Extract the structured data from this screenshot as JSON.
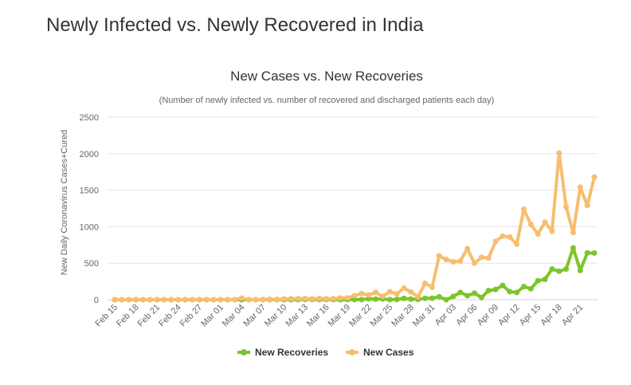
{
  "page": {
    "heading": "Newly Infected vs. Newly Recovered in India"
  },
  "chart_data": {
    "type": "line",
    "title": "New Cases vs. New Recoveries",
    "subtitle": "(Number of newly infected vs. number of recovered and discharged patients each day)",
    "xlabel": "",
    "ylabel": "New Daily Coronavirus Cases+Cured",
    "ylim": [
      0,
      2500
    ],
    "yticks": [
      0,
      500,
      1000,
      1500,
      2000,
      2500
    ],
    "grid": true,
    "legend_position": "bottom-center",
    "x": [
      "Feb 15",
      "Feb 16",
      "Feb 17",
      "Feb 18",
      "Feb 19",
      "Feb 20",
      "Feb 21",
      "Feb 22",
      "Feb 23",
      "Feb 24",
      "Feb 25",
      "Feb 26",
      "Feb 27",
      "Feb 28",
      "Feb 29",
      "Mar 01",
      "Mar 02",
      "Mar 03",
      "Mar 04",
      "Mar 05",
      "Mar 06",
      "Mar 07",
      "Mar 08",
      "Mar 09",
      "Mar 10",
      "Mar 11",
      "Mar 12",
      "Mar 13",
      "Mar 14",
      "Mar 15",
      "Mar 16",
      "Mar 17",
      "Mar 18",
      "Mar 19",
      "Mar 20",
      "Mar 21",
      "Mar 22",
      "Mar 23",
      "Mar 24",
      "Mar 25",
      "Mar 26",
      "Mar 27",
      "Mar 28",
      "Mar 29",
      "Mar 30",
      "Mar 31",
      "Apr 01",
      "Apr 02",
      "Apr 03",
      "Apr 04",
      "Apr 05",
      "Apr 06",
      "Apr 07",
      "Apr 08",
      "Apr 09",
      "Apr 10",
      "Apr 11",
      "Apr 12",
      "Apr 13",
      "Apr 14",
      "Apr 15",
      "Apr 16",
      "Apr 17",
      "Apr 18",
      "Apr 19",
      "Apr 20",
      "Apr 21",
      "Apr 22",
      "Apr 23"
    ],
    "x_tick_labels": [
      "Feb 15",
      "Feb 18",
      "Feb 21",
      "Feb 24",
      "Feb 27",
      "Mar 01",
      "Mar 04",
      "Mar 07",
      "Mar 10",
      "Mar 13",
      "Mar 16",
      "Mar 19",
      "Mar 22",
      "Mar 25",
      "Mar 28",
      "Mar 31",
      "Apr 03",
      "Apr 06",
      "Apr 09",
      "Apr 12",
      "Apr 15",
      "Apr 18",
      "Apr 21"
    ],
    "series": [
      {
        "name": "New Recoveries",
        "color": "#7cc52b",
        "values": [
          0,
          0,
          0,
          0,
          0,
          0,
          0,
          0,
          0,
          0,
          0,
          0,
          0,
          0,
          0,
          0,
          0,
          0,
          0,
          0,
          0,
          0,
          0,
          0,
          0,
          0,
          1,
          4,
          4,
          2,
          3,
          2,
          0,
          2,
          3,
          2,
          12,
          8,
          11,
          1,
          4,
          18,
          8,
          5,
          19,
          20,
          40,
          0,
          45,
          100,
          55,
          90,
          30,
          125,
          140,
          195,
          110,
          100,
          180,
          150,
          260,
          280,
          420,
          390,
          420,
          710,
          400,
          640,
          640
        ]
      },
      {
        "name": "New Cases",
        "color": "#f7be6f",
        "values": [
          0,
          0,
          0,
          0,
          0,
          0,
          0,
          0,
          0,
          0,
          0,
          0,
          0,
          0,
          0,
          0,
          1,
          2,
          22,
          1,
          2,
          3,
          5,
          4,
          10,
          13,
          14,
          16,
          12,
          18,
          13,
          15,
          25,
          25,
          55,
          85,
          65,
          100,
          45,
          110,
          80,
          160,
          105,
          40,
          225,
          170,
          600,
          550,
          520,
          530,
          700,
          500,
          580,
          570,
          800,
          870,
          860,
          760,
          1240,
          1030,
          900,
          1060,
          940,
          2010,
          1270,
          920,
          1540,
          1290,
          1680
        ]
      }
    ]
  }
}
